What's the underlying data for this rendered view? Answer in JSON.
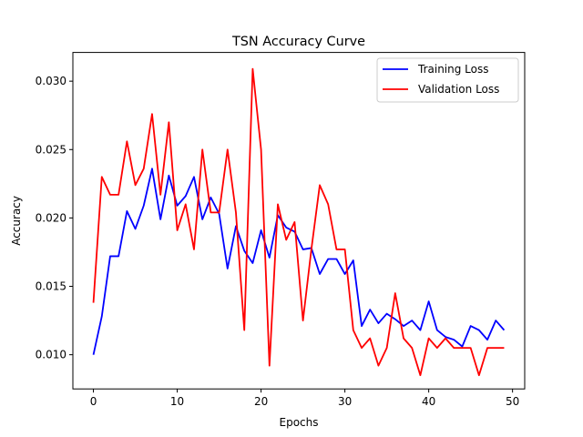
{
  "chart_data": {
    "type": "line",
    "title": "TSN Accuracy Curve",
    "xlabel": "Epochs",
    "ylabel": "Accuracy",
    "xlim": [
      -2.45,
      51.45
    ],
    "ylim": [
      0.0075,
      0.0321
    ],
    "xticks": [
      0,
      10,
      20,
      30,
      40,
      50
    ],
    "xtick_labels": [
      "0",
      "10",
      "20",
      "30",
      "40",
      "50"
    ],
    "yticks": [
      0.01,
      0.015,
      0.02,
      0.025,
      0.03
    ],
    "ytick_labels": [
      "0.010",
      "0.015",
      "0.020",
      "0.025",
      "0.030"
    ],
    "grid": false,
    "legend_position": "top-right",
    "x": [
      0,
      1,
      2,
      3,
      4,
      5,
      6,
      7,
      8,
      9,
      10,
      11,
      12,
      13,
      14,
      15,
      16,
      17,
      18,
      19,
      20,
      21,
      22,
      23,
      24,
      25,
      26,
      27,
      28,
      29,
      30,
      31,
      32,
      33,
      34,
      35,
      36,
      37,
      38,
      39,
      40,
      41,
      42,
      43,
      44,
      45,
      46,
      47,
      48,
      49
    ],
    "series": [
      {
        "name": "Training Loss",
        "color": "#0000ff",
        "values": [
          0.01,
          0.0128,
          0.0172,
          0.0172,
          0.0205,
          0.0192,
          0.0209,
          0.0236,
          0.0199,
          0.0231,
          0.0209,
          0.0216,
          0.023,
          0.0199,
          0.0215,
          0.0203,
          0.0163,
          0.0194,
          0.0176,
          0.0167,
          0.0191,
          0.0171,
          0.0202,
          0.0193,
          0.019,
          0.0177,
          0.0178,
          0.0159,
          0.017,
          0.017,
          0.0159,
          0.0169,
          0.0121,
          0.0133,
          0.0123,
          0.013,
          0.0126,
          0.0121,
          0.0125,
          0.0118,
          0.0139,
          0.0118,
          0.0113,
          0.0111,
          0.0106,
          0.0121,
          0.0118,
          0.0111,
          0.0125,
          0.0118
        ]
      },
      {
        "name": "Validation Loss",
        "color": "#ff0000",
        "values": [
          0.0138,
          0.023,
          0.0217,
          0.0217,
          0.0256,
          0.0224,
          0.0236,
          0.0276,
          0.0217,
          0.027,
          0.0191,
          0.021,
          0.0177,
          0.025,
          0.0204,
          0.0204,
          0.025,
          0.0204,
          0.0118,
          0.0309,
          0.025,
          0.0092,
          0.021,
          0.0184,
          0.0197,
          0.0125,
          0.0177,
          0.0224,
          0.021,
          0.0177,
          0.0177,
          0.0118,
          0.0105,
          0.0112,
          0.0092,
          0.0105,
          0.0145,
          0.0112,
          0.0105,
          0.0085,
          0.0112,
          0.0105,
          0.0112,
          0.0105,
          0.0105,
          0.0105,
          0.0085,
          0.0105,
          0.0105,
          0.0105
        ]
      }
    ]
  }
}
